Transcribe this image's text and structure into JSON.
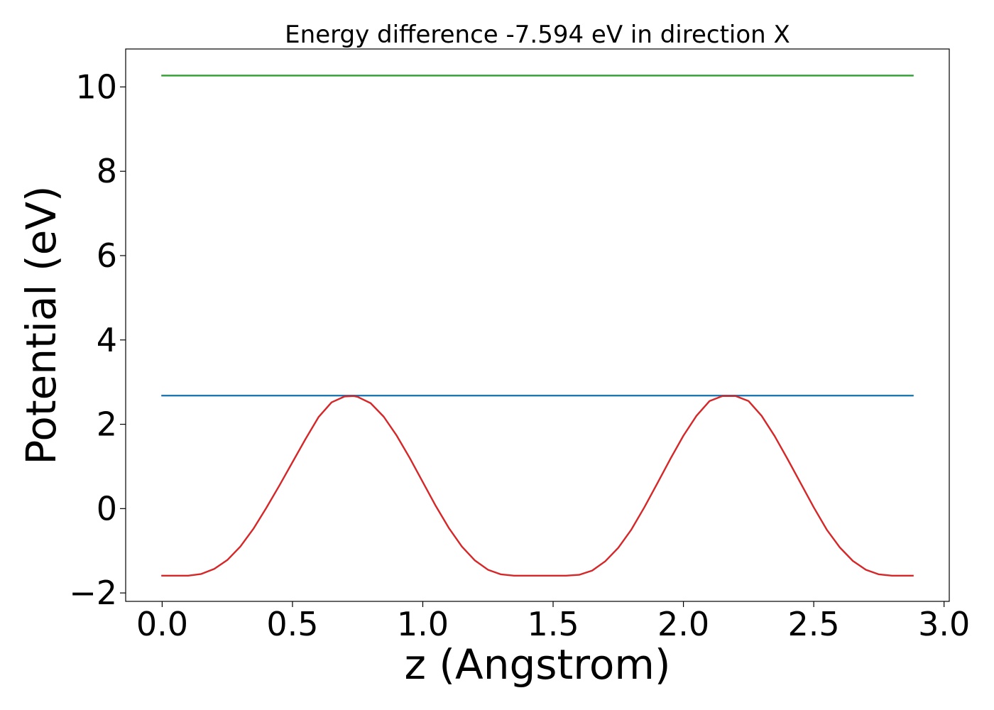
{
  "chart_data": {
    "type": "line",
    "title": "Energy difference -7.594 eV in direction X",
    "xlabel": "z (Angstrom)",
    "ylabel": "Potential (eV)",
    "xlim": [
      -0.14,
      3.02
    ],
    "ylim": [
      -2.2,
      10.9
    ],
    "xticks": [
      0.0,
      0.5,
      1.0,
      1.5,
      2.0,
      2.5,
      3.0
    ],
    "xtick_labels": [
      "0.0",
      "0.5",
      "1.0",
      "1.5",
      "2.0",
      "2.5",
      "3.0"
    ],
    "yticks": [
      -2,
      0,
      2,
      4,
      6,
      8,
      10
    ],
    "ytick_labels": [
      "−2",
      "0",
      "2",
      "4",
      "6",
      "8",
      "10"
    ],
    "grid": false,
    "legend": "none",
    "series": [
      {
        "color": "#2ca02c",
        "x": [
          0.0,
          2.88
        ],
        "y": [
          10.27,
          10.27
        ]
      },
      {
        "color": "#1f77b4",
        "x": [
          0.0,
          2.88
        ],
        "y": [
          2.68,
          2.68
        ]
      },
      {
        "color": "#d62728",
        "x": [
          0.0,
          0.05,
          0.1,
          0.15,
          0.2,
          0.25,
          0.3,
          0.35,
          0.4,
          0.45,
          0.5,
          0.55,
          0.6,
          0.65,
          0.7,
          0.735,
          0.75,
          0.8,
          0.85,
          0.9,
          0.95,
          1.0,
          1.05,
          1.1,
          1.15,
          1.2,
          1.25,
          1.3,
          1.35,
          1.4,
          1.45,
          1.5,
          1.55,
          1.6,
          1.65,
          1.7,
          1.75,
          1.8,
          1.85,
          1.9,
          1.95,
          2.0,
          2.05,
          2.1,
          2.15,
          2.2,
          2.25,
          2.3,
          2.35,
          2.4,
          2.45,
          2.5,
          2.55,
          2.6,
          2.65,
          2.7,
          2.75,
          2.8,
          2.85,
          2.88
        ],
        "y": [
          -1.59,
          -1.59,
          -1.59,
          -1.55,
          -1.43,
          -1.22,
          -0.9,
          -0.48,
          0.02,
          0.55,
          1.1,
          1.65,
          2.17,
          2.52,
          2.66,
          2.67,
          2.65,
          2.5,
          2.18,
          1.73,
          1.2,
          0.63,
          0.06,
          -0.46,
          -0.9,
          -1.23,
          -1.45,
          -1.56,
          -1.59,
          -1.59,
          -1.59,
          -1.59,
          -1.59,
          -1.57,
          -1.47,
          -1.25,
          -0.93,
          -0.5,
          0.03,
          0.6,
          1.18,
          1.73,
          2.2,
          2.55,
          2.67,
          2.67,
          2.55,
          2.2,
          1.72,
          1.17,
          0.6,
          0.03,
          -0.5,
          -0.92,
          -1.24,
          -1.45,
          -1.56,
          -1.59,
          -1.59,
          -1.59
        ]
      }
    ]
  }
}
